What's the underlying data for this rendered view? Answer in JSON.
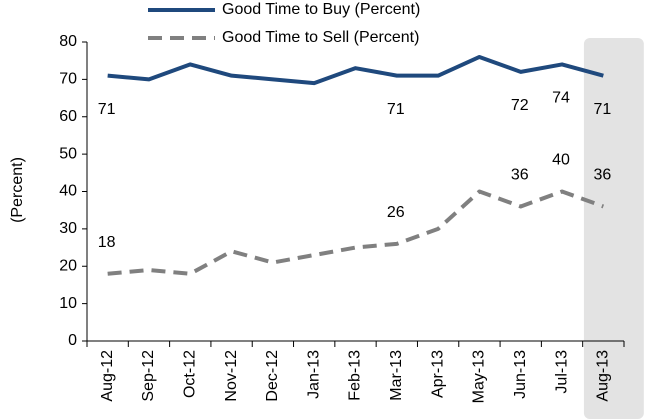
{
  "chart_data": {
    "type": "line",
    "y_label": "(Percent)",
    "categories": [
      "Aug-12",
      "Sep-12",
      "Oct-12",
      "Nov-12",
      "Dec-12",
      "Jan-13",
      "Feb-13",
      "Mar-13",
      "Apr-13",
      "May-13",
      "Jun-13",
      "Jul-13",
      "Aug-13"
    ],
    "series": [
      {
        "name": "Good Time to Buy (Percent)",
        "color": "#1f497d",
        "dashed": false,
        "values": [
          71,
          70,
          74,
          71,
          70,
          69,
          73,
          71,
          71,
          76,
          72,
          74,
          71
        ],
        "value_labels": [
          "71",
          null,
          null,
          null,
          null,
          null,
          null,
          "71",
          null,
          null,
          "72",
          "74",
          "71"
        ],
        "label_position": "below",
        "label_color": "#1f497d"
      },
      {
        "name": "Good Time to Sell (Percent)",
        "color": "#808080",
        "dashed": true,
        "values": [
          18,
          19,
          18,
          24,
          21,
          23,
          25,
          26,
          30,
          40,
          36,
          40,
          36
        ],
        "value_labels": [
          "18",
          null,
          null,
          null,
          null,
          null,
          null,
          "26",
          null,
          null,
          "36",
          "40",
          "36"
        ],
        "label_position": "above",
        "label_color": "#000000"
      }
    ],
    "ylim": [
      0,
      80
    ],
    "yticks": [
      0,
      10,
      20,
      30,
      40,
      50,
      60,
      70,
      80
    ],
    "grid": false
  }
}
